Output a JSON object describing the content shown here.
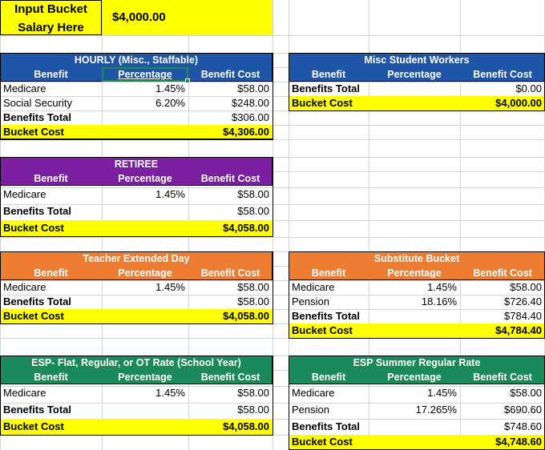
{
  "input": {
    "label_line1": "Input Bucket",
    "label_line2": "Salary Here",
    "value": "$4,000.00"
  },
  "colors": {
    "yellow": "#ffff00",
    "blue": "#1f55a6",
    "purple": "#7a1fa0",
    "orange": "#ed7d31",
    "green": "#1a8a5a",
    "gridline": "#d4d4d4"
  },
  "hourly": {
    "title": "HOURLY (Misc., Staffable)",
    "col_benefit": "Benefit",
    "col_percentage": "Percentage",
    "col_cost": "Benefit Cost",
    "rows": [
      {
        "benefit": "Medicare",
        "pct": "1.45%",
        "cost": "$58.00"
      },
      {
        "benefit": "Social Security",
        "pct": "6.20%",
        "cost": "$248.00"
      }
    ],
    "total_label": "Benefits Total",
    "total_value": "$306.00",
    "bucket_label": "Bucket Cost",
    "bucket_value": "$4,306.00"
  },
  "misc": {
    "title": "Misc Student Workers",
    "col_benefit": "Benefit",
    "col_percentage": "Percentage",
    "col_cost": "Benefit Cost",
    "total_label": "Benefits Total",
    "total_value": "$0.00",
    "bucket_label": "Bucket Cost",
    "bucket_value": "$4,000.00"
  },
  "retiree": {
    "title": "RETIREE",
    "col_benefit": "Benefit",
    "col_percentage": "Percentage",
    "col_cost": "Benefit Cost",
    "rows": [
      {
        "benefit": "Medicare",
        "pct": "1.45%",
        "cost": "$58.00"
      }
    ],
    "total_label": "Benefits Total",
    "total_value": "$58.00",
    "bucket_label": "Bucket Cost",
    "bucket_value": "$4,058.00"
  },
  "teacher": {
    "title": "Teacher Extended Day",
    "col_benefit": "Benefit",
    "col_percentage": "Percentage",
    "col_cost": "Benefit Cost",
    "rows": [
      {
        "benefit": "Medicare",
        "pct": "1.45%",
        "cost": "$58.00"
      }
    ],
    "total_label": "Benefits Total",
    "total_value": "$58.00",
    "bucket_label": "Bucket Cost",
    "bucket_value": "$4,058.00"
  },
  "substitute": {
    "title": "Substitute Bucket",
    "col_benefit": "Benefit",
    "col_percentage": "Percentage",
    "col_cost": "Benefit Cost",
    "rows": [
      {
        "benefit": "Medicare",
        "pct": "1.45%",
        "cost": "$58.00"
      },
      {
        "benefit": "Pension",
        "pct": "18.16%",
        "cost": "$726.40"
      }
    ],
    "total_label": "Benefits Total",
    "total_value": "$784.40",
    "bucket_label": "Bucket Cost",
    "bucket_value": "$4,784.40"
  },
  "esp": {
    "title": "ESP- Flat, Regular, or OT Rate (School Year)",
    "col_benefit": "Benefit",
    "col_percentage": "Percentage",
    "col_cost": "Benefit Cost",
    "rows": [
      {
        "benefit": "Medicare",
        "pct": "1.45%",
        "cost": "$58.00"
      }
    ],
    "total_label": "Benefits Total",
    "total_value": "$58.00",
    "bucket_label": "Bucket Cost",
    "bucket_value": "$4,058.00"
  },
  "esp_summer": {
    "title": "ESP Summer Regular Rate",
    "col_benefit": "Benefit",
    "col_percentage": "Percentage",
    "col_cost": "Benefit Cost",
    "rows": [
      {
        "benefit": "Medicare",
        "pct": "1.45%",
        "cost": "$58.00"
      },
      {
        "benefit": "Pension",
        "pct": "17.265%",
        "cost": "$690.60"
      }
    ],
    "total_label": "Benefits Total",
    "total_value": "$748.60",
    "bucket_label": "Bucket Cost",
    "bucket_value": "$4,748.60"
  }
}
